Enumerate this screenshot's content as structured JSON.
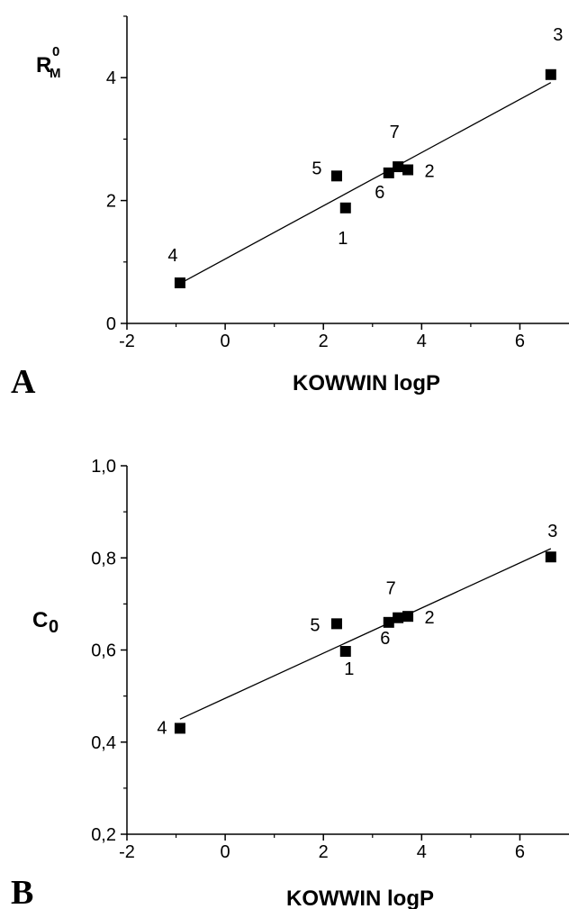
{
  "chart_data": [
    {
      "type": "scatter",
      "panel_label": "A",
      "xlabel": "KOWWIN logP",
      "ylabel": {
        "base": "R",
        "superscript": "0",
        "subscript": "M"
      },
      "xlim": [
        -2,
        7
      ],
      "ylim": [
        0,
        5
      ],
      "x_ticks": [
        -2,
        0,
        2,
        4,
        6
      ],
      "x_tick_labels": [
        "-2",
        "0",
        "2",
        "4",
        "6"
      ],
      "y_ticks": [
        0,
        2,
        4
      ],
      "y_tick_labels": [
        "0",
        "2",
        "4"
      ],
      "grid": false,
      "points": [
        {
          "label": "1",
          "x": 2.45,
          "y": 1.88
        },
        {
          "label": "2",
          "x": 3.72,
          "y": 2.5
        },
        {
          "label": "3",
          "x": 6.63,
          "y": 4.05
        },
        {
          "label": "4",
          "x": -0.92,
          "y": 0.66
        },
        {
          "label": "5",
          "x": 2.27,
          "y": 2.4
        },
        {
          "label": "6",
          "x": 3.33,
          "y": 2.45
        },
        {
          "label": "7",
          "x": 3.52,
          "y": 2.55
        }
      ],
      "fit_line": {
        "x": [
          -0.92,
          6.63
        ],
        "y": [
          0.65,
          3.92
        ]
      }
    },
    {
      "type": "scatter",
      "panel_label": "B",
      "xlabel": "KOWWIN logP",
      "ylabel": {
        "base": "C",
        "subscript": "0"
      },
      "xlim": [
        -2,
        7
      ],
      "ylim": [
        0.2,
        1.0
      ],
      "x_ticks": [
        -2,
        0,
        2,
        4,
        6
      ],
      "x_tick_labels": [
        "-2",
        "0",
        "2",
        "4",
        "6"
      ],
      "y_ticks": [
        0.2,
        0.4,
        0.6,
        0.8,
        1.0
      ],
      "y_tick_labels": [
        "0,2",
        "0,4",
        "0,6",
        "0,8",
        "1,0"
      ],
      "grid": false,
      "points": [
        {
          "label": "1",
          "x": 2.45,
          "y": 0.597
        },
        {
          "label": "2",
          "x": 3.72,
          "y": 0.673
        },
        {
          "label": "3",
          "x": 6.63,
          "y": 0.802
        },
        {
          "label": "4",
          "x": -0.92,
          "y": 0.43
        },
        {
          "label": "5",
          "x": 2.27,
          "y": 0.657
        },
        {
          "label": "6",
          "x": 3.33,
          "y": 0.66
        },
        {
          "label": "7",
          "x": 3.52,
          "y": 0.67
        }
      ],
      "fit_line": {
        "x": [
          -0.92,
          6.63
        ],
        "y": [
          0.45,
          0.82
        ]
      }
    }
  ]
}
